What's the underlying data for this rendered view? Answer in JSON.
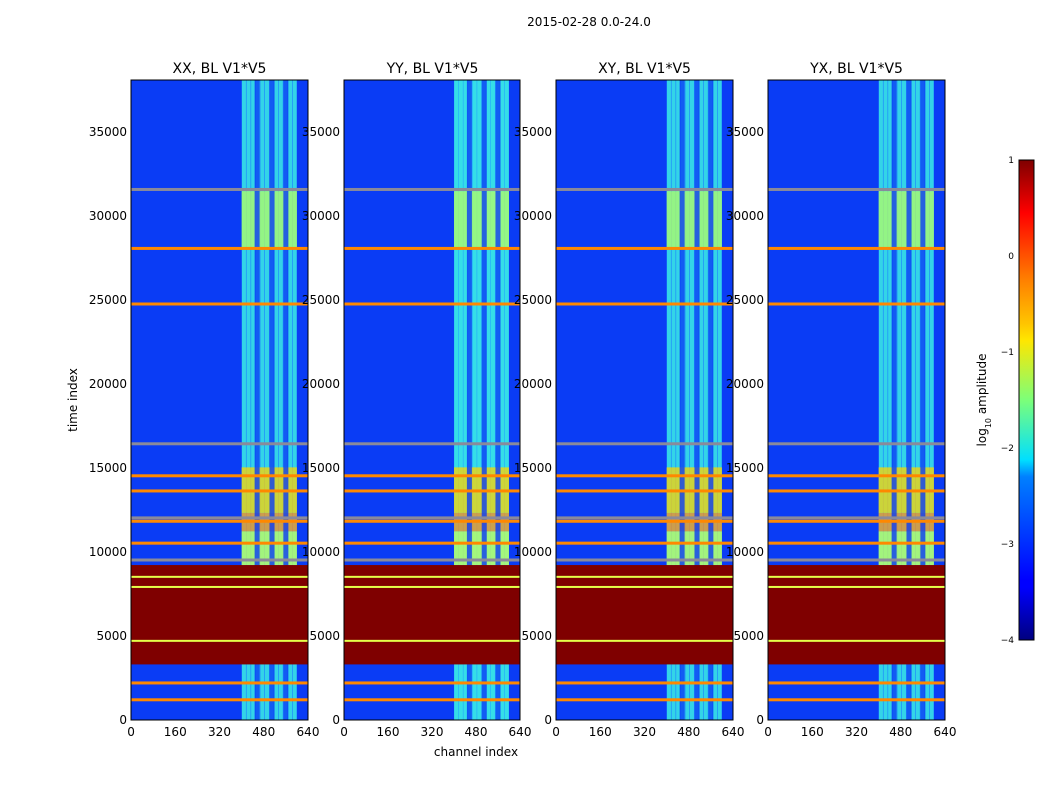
{
  "chart_data": {
    "type": "heatmap",
    "suptitle": "2015-02-28 0.0-24.0",
    "xlabel": "channel index",
    "ylabel": "time index",
    "xlim": [
      0,
      640
    ],
    "ylim": [
      0,
      38000
    ],
    "x_ticks": [
      0,
      160,
      320,
      480,
      640
    ],
    "y_ticks": [
      0,
      5000,
      10000,
      15000,
      20000,
      25000,
      30000,
      35000
    ],
    "x_tick_labels": [
      "0",
      "160",
      "320",
      "480",
      "640"
    ],
    "y_tick_labels": [
      "0",
      "5000",
      "10000",
      "15000",
      "20000",
      "25000",
      "30000",
      "35000"
    ],
    "panels": [
      {
        "title": "XX, BL V1*V5"
      },
      {
        "title": "YY, BL V1*V5"
      },
      {
        "title": "XY, BL V1*V5"
      },
      {
        "title": "YX, BL V1*V5"
      }
    ],
    "colorbar": {
      "label_prefix": "log",
      "label_sub": "10",
      "label_suffix": " amplitude",
      "range": [
        -4,
        1
      ],
      "ticks": [
        1,
        0,
        -1,
        -2,
        -3,
        -4
      ],
      "tick_labels": [
        "1",
        "0",
        "−1",
        "−2",
        "−3",
        "−4"
      ],
      "colormap": "jet"
    },
    "features": {
      "saturated_band_time": [
        3300,
        9200
      ],
      "saturated_value": 1,
      "rfi_channel_band": [
        400,
        600
      ],
      "horizontal_lines_time": [
        1200,
        2200,
        9500,
        10500,
        11800,
        12000,
        13600,
        14500,
        16400,
        24700,
        28000,
        31500
      ],
      "background_log_amplitude": -3.3
    },
    "colors": {
      "background": "#0a3cf5",
      "saturated": "#7f0000",
      "orange_line": "#ff8800",
      "yellow_line": "#e6ff4a",
      "gray_line": "#8a8a9a"
    }
  }
}
